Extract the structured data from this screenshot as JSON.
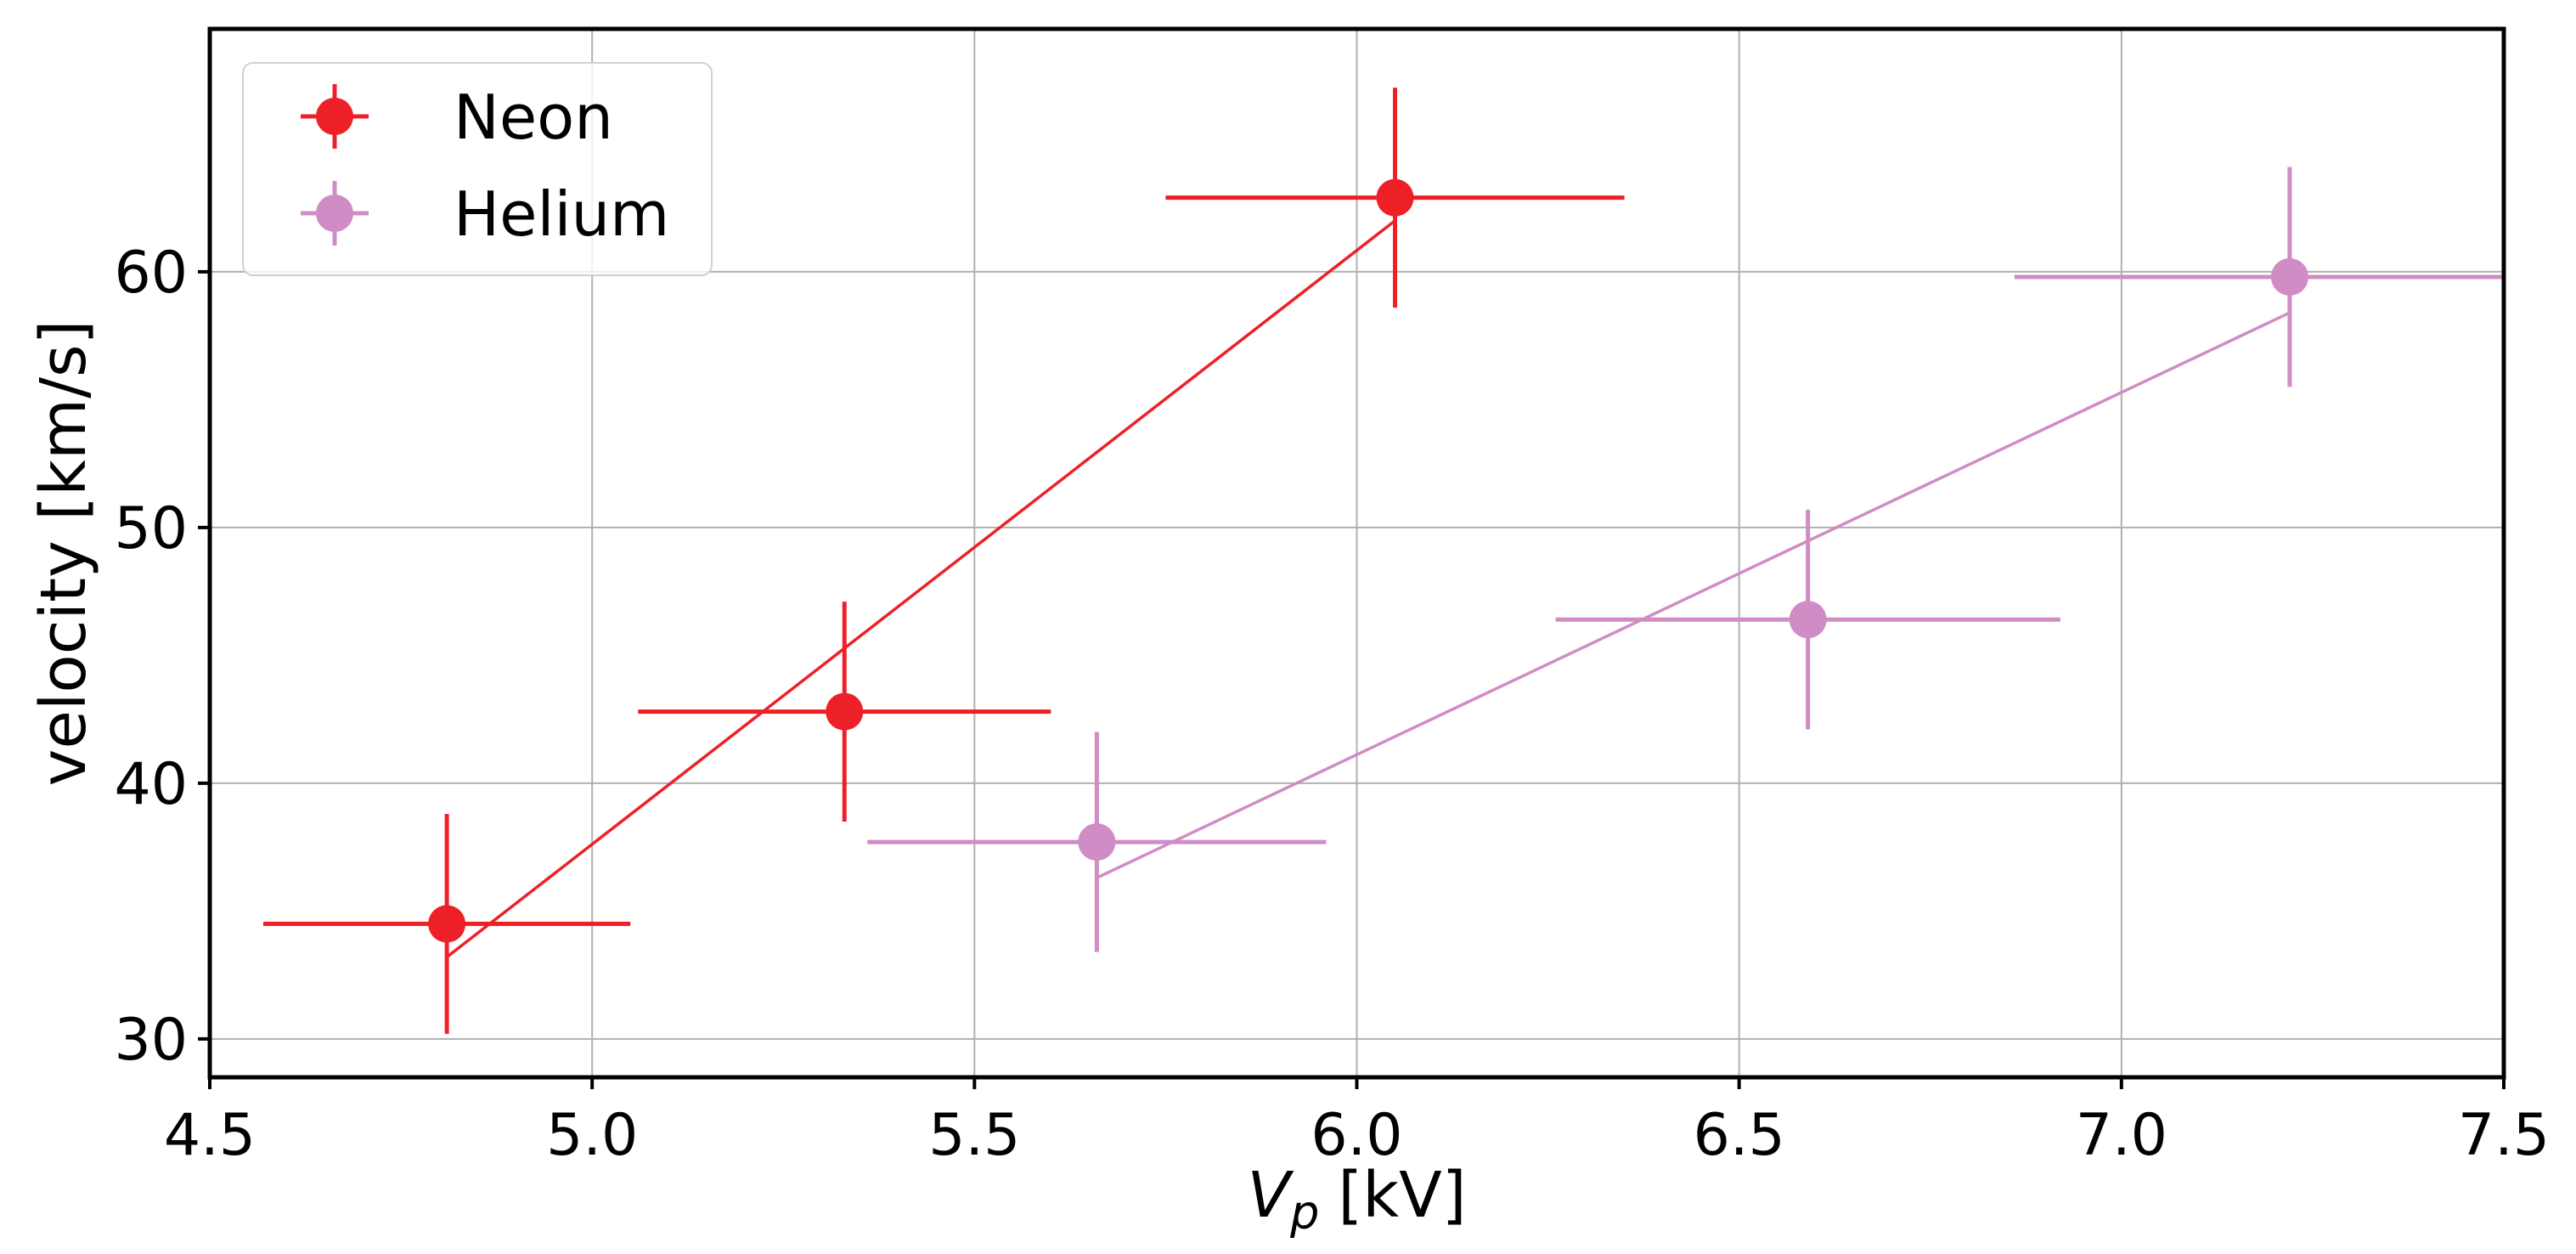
{
  "chart_data": {
    "type": "scatter",
    "title": "",
    "xlabel": {
      "symbol": "V",
      "subscript": "p",
      "unit": "[kV]"
    },
    "ylabel": "velocity [km/s]",
    "xlim": [
      4.5,
      7.5
    ],
    "ylim": [
      28.5,
      69.5
    ],
    "xticks": [
      4.5,
      5.0,
      5.5,
      6.0,
      6.5,
      7.0,
      7.5
    ],
    "xtick_labels": [
      "4.5",
      "5.0",
      "5.5",
      "6.0",
      "6.5",
      "7.0",
      "7.5"
    ],
    "yticks": [
      30,
      40,
      50,
      60
    ],
    "ytick_labels": [
      "30",
      "40",
      "50",
      "60"
    ],
    "grid": true,
    "legend_position": "top-left",
    "series": [
      {
        "name": "Neon",
        "color": "#ee2027",
        "points": [
          {
            "x": 4.81,
            "y": 34.5,
            "xerr": 0.24,
            "yerr": 4.3
          },
          {
            "x": 5.33,
            "y": 42.8,
            "xerr": 0.27,
            "yerr": 4.3
          },
          {
            "x": 6.05,
            "y": 62.9,
            "xerr": 0.3,
            "yerr": 4.3
          }
        ],
        "fit_line": [
          [
            4.81,
            33.2
          ],
          [
            6.05,
            62.0
          ]
        ]
      },
      {
        "name": "Helium",
        "color": "#d08cc4",
        "points": [
          {
            "x": 5.66,
            "y": 37.7,
            "xerr": 0.3,
            "yerr": 4.3
          },
          {
            "x": 6.59,
            "y": 46.4,
            "xerr": 0.33,
            "yerr": 4.3
          },
          {
            "x": 7.22,
            "y": 59.8,
            "xerr": 0.36,
            "yerr": 4.3
          }
        ],
        "fit_line": [
          [
            5.66,
            36.3
          ],
          [
            7.22,
            58.4
          ]
        ]
      }
    ]
  }
}
